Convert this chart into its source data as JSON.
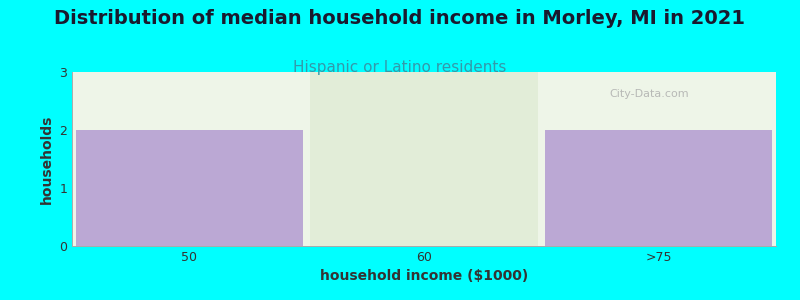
{
  "title": "Distribution of median household income in Morley, MI in 2021",
  "subtitle": "Hispanic or Latino residents",
  "xlabel": "household income ($1000)",
  "ylabel": "households",
  "categories": [
    "50",
    "60",
    ">75"
  ],
  "values": [
    2,
    0,
    2
  ],
  "bar_color": "#BBA8D4",
  "bar_color_zero": "#E2EDD8",
  "background_color": "#00FFFF",
  "plot_bg_color": "#EEF5E8",
  "title_fontsize": 14,
  "title_color": "#1a1a2e",
  "subtitle_fontsize": 11,
  "subtitle_color": "#3399AA",
  "axis_label_fontsize": 10,
  "tick_label_fontsize": 9,
  "ylim": [
    0,
    3
  ],
  "yticks": [
    0,
    1,
    2,
    3
  ],
  "watermark": "City-Data.com",
  "bar_width": 0.97
}
